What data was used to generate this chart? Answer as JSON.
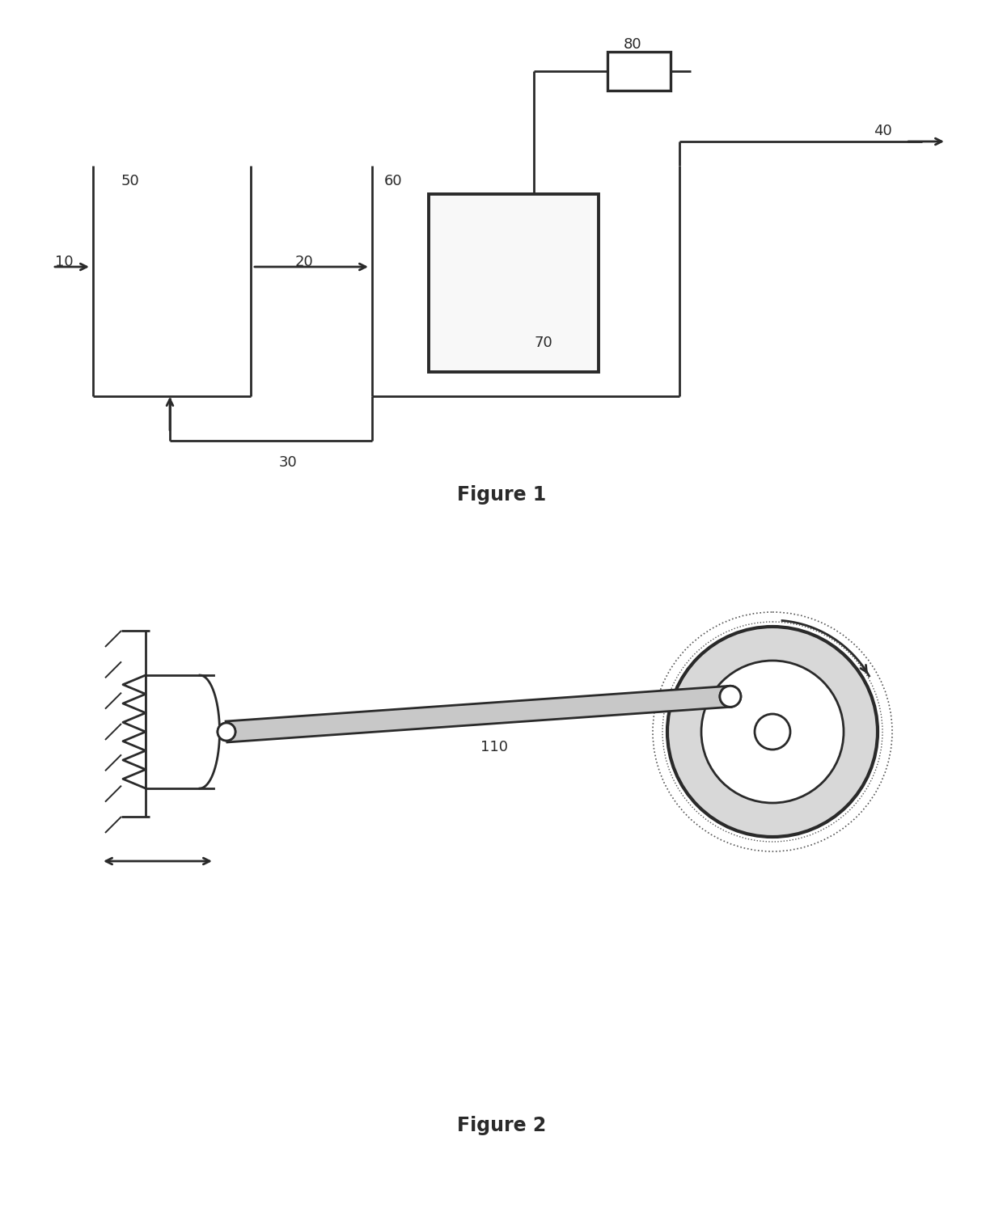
{
  "fig_width": 12.4,
  "fig_height": 15.15,
  "bg_color": "#ffffff",
  "line_color": "#2a2a2a",
  "label_fontsize": 13,
  "fig1_title": "Figure 1",
  "fig2_title": "Figure 2"
}
